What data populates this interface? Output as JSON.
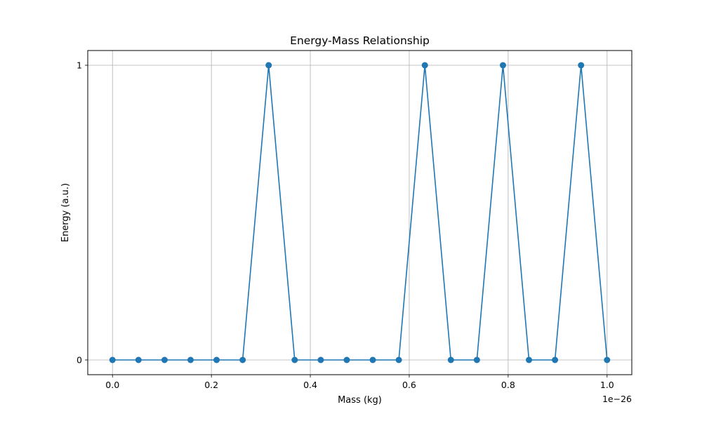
{
  "chart_data": {
    "type": "line",
    "title": "Energy-Mass Relationship",
    "xlabel": "Mass (kg)",
    "ylabel": "Energy (a.u.)",
    "x_offset_text": "1e−26",
    "x_scale": 1e-26,
    "xlim": [
      -0.05,
      1.05
    ],
    "ylim": [
      -0.05,
      1.05
    ],
    "x_ticks": [
      0.0,
      0.2,
      0.4,
      0.6,
      0.8,
      1.0
    ],
    "x_tick_labels": [
      "0.0",
      "0.2",
      "0.4",
      "0.6",
      "0.8",
      "1.0"
    ],
    "y_ticks": [
      0,
      1
    ],
    "y_tick_labels": [
      "0",
      "1"
    ],
    "grid": true,
    "series": [
      {
        "color": "#1f77b4",
        "marker": "circle",
        "x": [
          0.0,
          0.0526,
          0.1053,
          0.1579,
          0.2105,
          0.2632,
          0.3158,
          0.3684,
          0.4211,
          0.4737,
          0.5263,
          0.5789,
          0.6316,
          0.6842,
          0.7368,
          0.7895,
          0.8421,
          0.8947,
          0.9474,
          1.0
        ],
        "y": [
          0,
          0,
          0,
          0,
          0,
          0,
          1,
          0,
          0,
          0,
          0,
          0,
          1,
          0,
          0,
          1,
          0,
          0,
          1,
          0
        ]
      }
    ]
  }
}
